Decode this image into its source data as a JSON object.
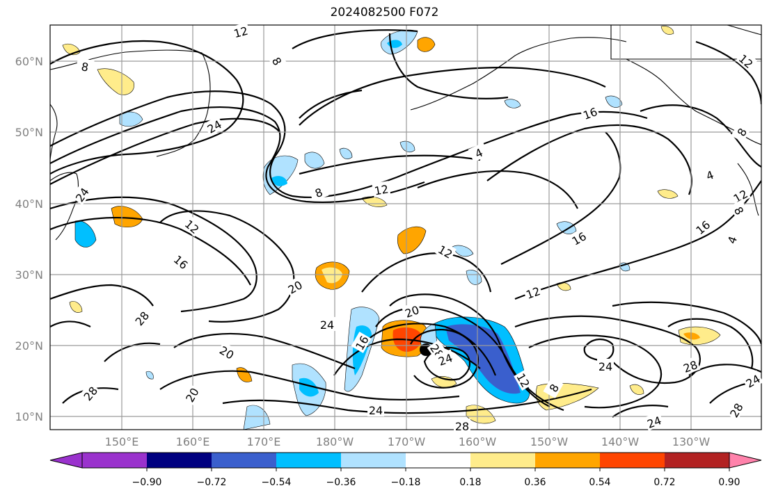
{
  "title": "2024082500 F072",
  "map": {
    "lat_ticks": [
      "60°N",
      "50°N",
      "40°N",
      "30°N",
      "20°N",
      "10°N"
    ],
    "lon_ticks": [
      "150°E",
      "160°E",
      "170°E",
      "180°W",
      "170°W",
      "160°W",
      "150°W",
      "140°W",
      "130°W"
    ],
    "contour_labels": [
      "12",
      "8",
      "8",
      "24",
      "16",
      "4",
      "12",
      "8",
      "24",
      "12",
      "16",
      "12",
      "16",
      "20",
      "12",
      "20",
      "24",
      "28",
      "20",
      "16",
      "28",
      "24",
      "20",
      "28",
      "12",
      "24",
      "28",
      "24",
      "24",
      "28",
      "24",
      "28",
      "8",
      "4",
      "12",
      "8",
      "4",
      "12",
      "16",
      "8"
    ],
    "storm_marker": "black-dot-circle-icon"
  },
  "colorbar": {
    "ticks": [
      "−0.90",
      "−0.72",
      "−0.54",
      "−0.36",
      "−0.18",
      "0.18",
      "0.36",
      "0.54",
      "0.72",
      "0.90"
    ],
    "colors": [
      "#9a32cd",
      "#000080",
      "#3a5fcd",
      "#00bfff",
      "#b0e2ff",
      "#ffffff",
      "#ffec8b",
      "#ffa500",
      "#ff4500",
      "#b22222",
      "#ff82ab"
    ]
  }
}
